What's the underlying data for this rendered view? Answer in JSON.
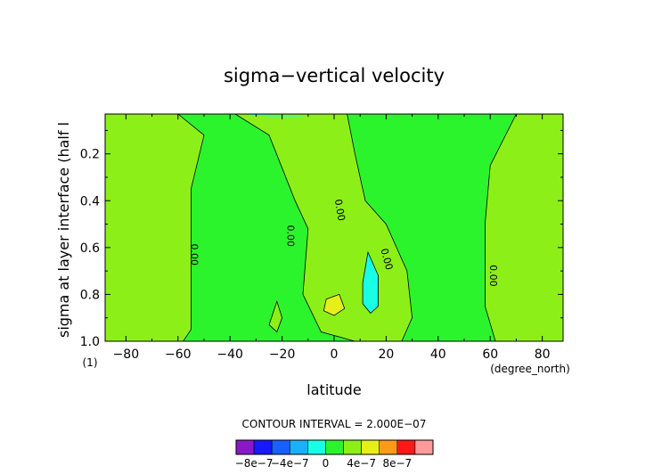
{
  "chart_data": {
    "type": "heatmap",
    "title": "sigma−vertical velocity",
    "xlabel": "latitude",
    "xunit": "(degree_north)",
    "ylabel": "sigma at layer interface (half l",
    "yunit": "(1)",
    "xlim": [
      -88,
      88
    ],
    "ylim": [
      0.03,
      1.0
    ],
    "y_reversed": true,
    "x_ticks": [
      -80,
      -60,
      -40,
      -20,
      0,
      20,
      40,
      60,
      80
    ],
    "y_ticks": [
      0.2,
      0.4,
      0.6,
      0.8,
      1.0
    ],
    "x_tick_labels": [
      "−80",
      "−60",
      "−40",
      "−20",
      "0",
      "20",
      "40",
      "60",
      "80"
    ],
    "y_tick_labels": [
      "0.2",
      "0.4",
      "0.6",
      "0.8",
      "1.0"
    ],
    "contour_interval_text": "CONTOUR INTERVAL = 2.000E−07",
    "contour_labels": [
      "0.00",
      "0.00",
      "0.00",
      "0.00",
      "0.00"
    ],
    "colorbar": {
      "levels": [
        -1e-06,
        -8e-07,
        -6e-07,
        -4e-07,
        -2e-07,
        0,
        2e-07,
        4e-07,
        6e-07,
        8e-07,
        1e-06
      ],
      "colors": [
        "#8b18c8",
        "#1818ff",
        "#1860ff",
        "#18b0ff",
        "#18ffe6",
        "#2cf42c",
        "#8cf018",
        "#e6f018",
        "#ff9a18",
        "#ff1818",
        "#ff9a9a"
      ],
      "labels": [
        "−8e−7",
        "−4e−7",
        "0",
        "4e−7",
        "8e−7"
      ]
    },
    "regions": [
      {
        "name": "positive-band-north",
        "polygon": [
          [
            -38,
            0.03
          ],
          [
            -25,
            0.12
          ],
          [
            -15,
            0.4
          ],
          [
            -10,
            0.52
          ],
          [
            -12,
            0.8
          ],
          [
            -5,
            0.96
          ],
          [
            8,
            1.0
          ],
          [
            26,
            1.0
          ],
          [
            30,
            0.9
          ],
          [
            28,
            0.7
          ],
          [
            20,
            0.5
          ],
          [
            12,
            0.4
          ],
          [
            8,
            0.2
          ],
          [
            5,
            0.03
          ]
        ]
      },
      {
        "name": "positive-band-south",
        "polygon": [
          [
            -88,
            0.03
          ],
          [
            -60,
            0.03
          ],
          [
            -50,
            0.12
          ],
          [
            -55,
            0.35
          ],
          [
            -55,
            0.7
          ],
          [
            -55,
            0.95
          ],
          [
            -58,
            1.0
          ],
          [
            -88,
            1.0
          ]
        ]
      },
      {
        "name": "positive-band-east",
        "polygon": [
          [
            58,
            0.03
          ],
          [
            70,
            0.03
          ],
          [
            60,
            0.25
          ],
          [
            58,
            0.5
          ],
          [
            58,
            0.85
          ],
          [
            62,
            1.0
          ],
          [
            88,
            1.0
          ],
          [
            88,
            0.03
          ]
        ]
      },
      {
        "name": "small-cell-south",
        "polygon": [
          [
            -25,
            0.93
          ],
          [
            -22,
            0.83
          ],
          [
            -20,
            0.9
          ],
          [
            -22,
            0.96
          ]
        ]
      },
      {
        "name": "positive-cell-4e7",
        "polygon": [
          [
            -3,
            0.82
          ],
          [
            2,
            0.8
          ],
          [
            4,
            0.86
          ],
          [
            0,
            0.89
          ],
          [
            -4,
            0.87
          ]
        ]
      },
      {
        "name": "negative-cell-2e7",
        "polygon": [
          [
            11,
            0.75
          ],
          [
            13,
            0.62
          ],
          [
            17,
            0.72
          ],
          [
            17,
            0.85
          ],
          [
            14,
            0.88
          ],
          [
            11,
            0.84
          ]
        ]
      }
    ]
  }
}
